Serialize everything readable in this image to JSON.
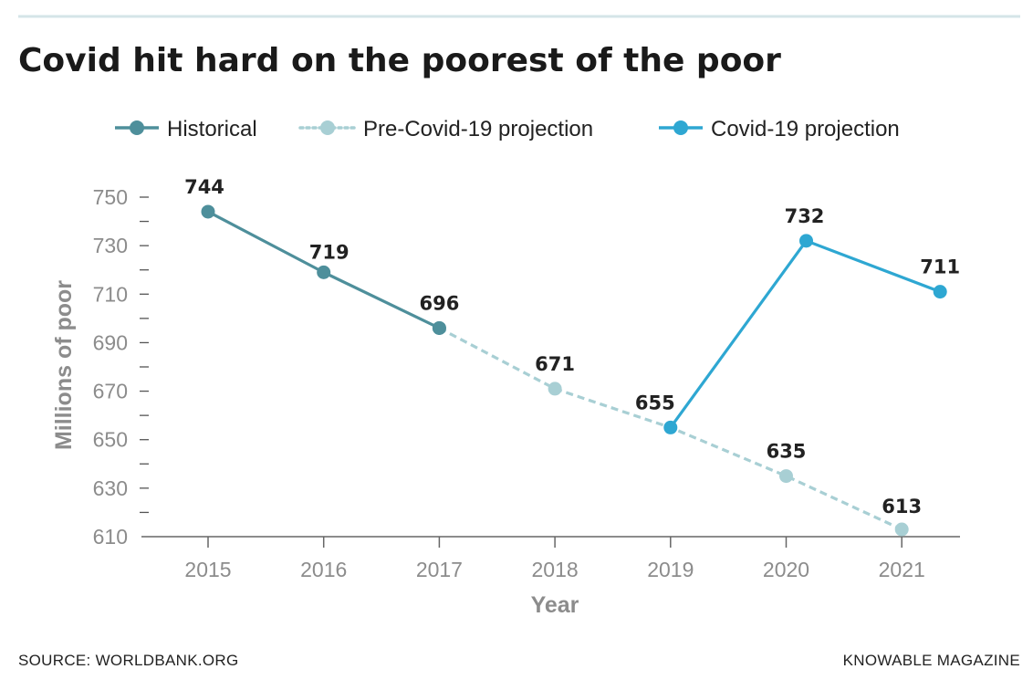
{
  "chart_data": {
    "type": "line",
    "title": "Covid hit hard on the poorest of the poor",
    "xlabel": "Year",
    "ylabel": "Millions of poor",
    "ylim": [
      610,
      750
    ],
    "yticks": [
      610,
      630,
      650,
      670,
      690,
      710,
      730,
      750
    ],
    "categories": [
      "2015",
      "2016",
      "2017",
      "2018",
      "2019",
      "2020",
      "2021"
    ],
    "grid": false,
    "legend_position": "top",
    "series": [
      {
        "name": "Historical",
        "style": "solid",
        "color": "#4e8f9b",
        "x": [
          "2015",
          "2016",
          "2017"
        ],
        "values": [
          744,
          719,
          696
        ]
      },
      {
        "name": "Pre-Covid-19 projection",
        "style": "dashed",
        "color": "#a8cfd4",
        "x": [
          "2017",
          "2018",
          "2019",
          "2020",
          "2021"
        ],
        "values": [
          696,
          671,
          655,
          635,
          613
        ]
      },
      {
        "name": "Covid-19 projection",
        "style": "solid",
        "color": "#2ea7d2",
        "x": [
          "2019",
          "2020",
          "2021"
        ],
        "values": [
          655,
          732,
          711
        ]
      }
    ],
    "data_labels": [
      {
        "x": "2015",
        "value": 744,
        "text": "744"
      },
      {
        "x": "2016",
        "value": 719,
        "text": "719"
      },
      {
        "x": "2017",
        "value": 696,
        "text": "696"
      },
      {
        "x": "2018",
        "value": 671,
        "text": "671"
      },
      {
        "x": "2019",
        "value": 655,
        "text": "655"
      },
      {
        "x": "2020",
        "value": 635,
        "text": "635"
      },
      {
        "x": "2021",
        "value": 613,
        "text": "613"
      },
      {
        "x": "2020",
        "value": 732,
        "text": "732",
        "series": "Covid-19 projection"
      },
      {
        "x": "2021",
        "value": 711,
        "text": "711",
        "series": "Covid-19 projection"
      }
    ]
  },
  "footer": {
    "source": "SOURCE: WORLDBANK.ORG",
    "publisher": "KNOWABLE MAGAZINE"
  },
  "colors": {
    "rule": "#d5e5e8",
    "axis": "#8c8c8c"
  }
}
